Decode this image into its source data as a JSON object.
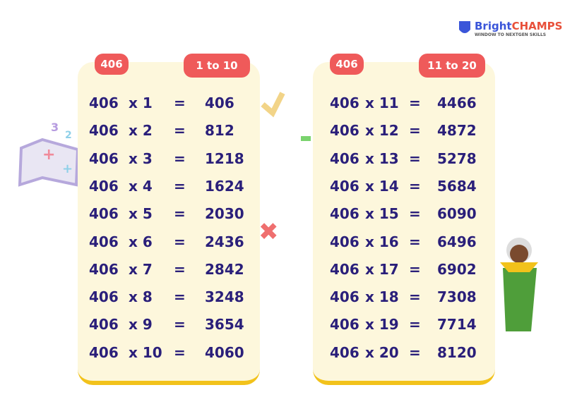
{
  "brand": {
    "name_start": "Bright",
    "name_end": "CHAMPS",
    "tagline": "WINDOW TO NEXTGEN SKILLS"
  },
  "tables": [
    {
      "badge": "406",
      "range": "1 to 10",
      "rows": [
        [
          "406",
          "x 1",
          "=",
          "406"
        ],
        [
          "406",
          "x 2",
          "=",
          "812"
        ],
        [
          "406",
          "x 3",
          "=",
          "1218"
        ],
        [
          "406",
          "x 4",
          "=",
          "1624"
        ],
        [
          "406",
          "x 5",
          "=",
          "2030"
        ],
        [
          "406",
          "x 6",
          "=",
          "2436"
        ],
        [
          "406",
          "x 7",
          "=",
          "2842"
        ],
        [
          "406",
          "x 8",
          "=",
          "3248"
        ],
        [
          "406",
          "x 9",
          "=",
          "3654"
        ],
        [
          "406",
          "x 10",
          "=",
          "4060"
        ]
      ]
    },
    {
      "badge": "406",
      "range": "11 to 20",
      "rows": [
        [
          "406",
          "x 11",
          "=",
          "4466"
        ],
        [
          "406",
          "x 12",
          "=",
          "4872"
        ],
        [
          "406",
          "x 13",
          "=",
          "5278"
        ],
        [
          "406",
          "x 14",
          "=",
          "5684"
        ],
        [
          "406",
          "x 15",
          "=",
          "6090"
        ],
        [
          "406",
          "x 16",
          "=",
          "6496"
        ],
        [
          "406",
          "x 17",
          "=",
          "6902"
        ],
        [
          "406",
          "x 18",
          "=",
          "7308"
        ],
        [
          "406",
          "x 19",
          "=",
          "7714"
        ],
        [
          "406",
          "x 20",
          "=",
          "8120"
        ]
      ]
    }
  ]
}
